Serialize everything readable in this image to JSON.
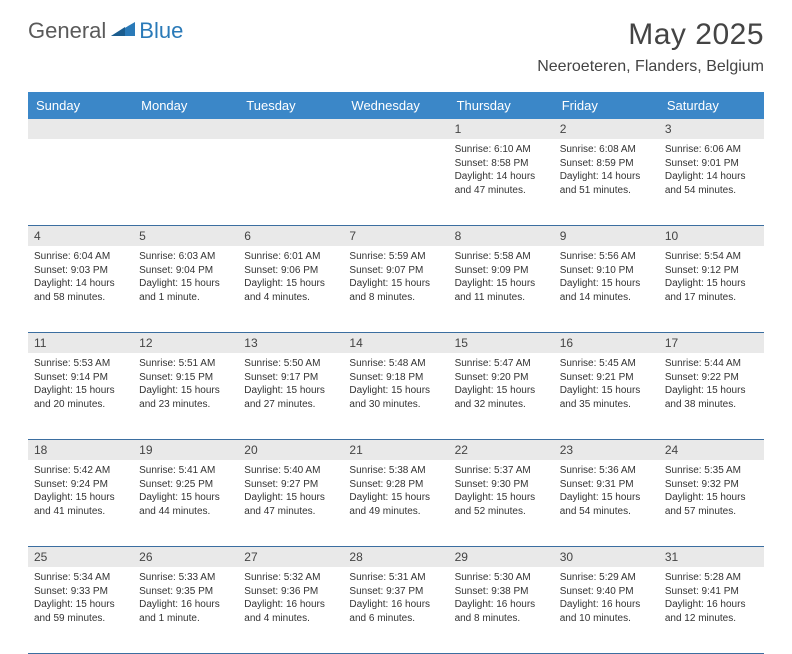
{
  "brand": {
    "part1": "General",
    "part2": "Blue"
  },
  "title": "May 2025",
  "location": "Neeroeteren, Flanders, Belgium",
  "colors": {
    "header_bg": "#3b87c8",
    "header_text": "#ffffff",
    "daynum_bg": "#e9e9e9",
    "week_border": "#3b6ea0",
    "brand_gray": "#5a5a5a",
    "brand_blue": "#2a7ab8",
    "text": "#333333"
  },
  "fonts": {
    "title_size": 30,
    "location_size": 16,
    "header_size": 13,
    "daynum_size": 12,
    "cell_size": 10
  },
  "day_names": [
    "Sunday",
    "Monday",
    "Tuesday",
    "Wednesday",
    "Thursday",
    "Friday",
    "Saturday"
  ],
  "weeks": [
    [
      {
        "day": "",
        "lines": []
      },
      {
        "day": "",
        "lines": []
      },
      {
        "day": "",
        "lines": []
      },
      {
        "day": "",
        "lines": []
      },
      {
        "day": "1",
        "lines": [
          "Sunrise: 6:10 AM",
          "Sunset: 8:58 PM",
          "Daylight: 14 hours",
          "and 47 minutes."
        ]
      },
      {
        "day": "2",
        "lines": [
          "Sunrise: 6:08 AM",
          "Sunset: 8:59 PM",
          "Daylight: 14 hours",
          "and 51 minutes."
        ]
      },
      {
        "day": "3",
        "lines": [
          "Sunrise: 6:06 AM",
          "Sunset: 9:01 PM",
          "Daylight: 14 hours",
          "and 54 minutes."
        ]
      }
    ],
    [
      {
        "day": "4",
        "lines": [
          "Sunrise: 6:04 AM",
          "Sunset: 9:03 PM",
          "Daylight: 14 hours",
          "and 58 minutes."
        ]
      },
      {
        "day": "5",
        "lines": [
          "Sunrise: 6:03 AM",
          "Sunset: 9:04 PM",
          "Daylight: 15 hours",
          "and 1 minute."
        ]
      },
      {
        "day": "6",
        "lines": [
          "Sunrise: 6:01 AM",
          "Sunset: 9:06 PM",
          "Daylight: 15 hours",
          "and 4 minutes."
        ]
      },
      {
        "day": "7",
        "lines": [
          "Sunrise: 5:59 AM",
          "Sunset: 9:07 PM",
          "Daylight: 15 hours",
          "and 8 minutes."
        ]
      },
      {
        "day": "8",
        "lines": [
          "Sunrise: 5:58 AM",
          "Sunset: 9:09 PM",
          "Daylight: 15 hours",
          "and 11 minutes."
        ]
      },
      {
        "day": "9",
        "lines": [
          "Sunrise: 5:56 AM",
          "Sunset: 9:10 PM",
          "Daylight: 15 hours",
          "and 14 minutes."
        ]
      },
      {
        "day": "10",
        "lines": [
          "Sunrise: 5:54 AM",
          "Sunset: 9:12 PM",
          "Daylight: 15 hours",
          "and 17 minutes."
        ]
      }
    ],
    [
      {
        "day": "11",
        "lines": [
          "Sunrise: 5:53 AM",
          "Sunset: 9:14 PM",
          "Daylight: 15 hours",
          "and 20 minutes."
        ]
      },
      {
        "day": "12",
        "lines": [
          "Sunrise: 5:51 AM",
          "Sunset: 9:15 PM",
          "Daylight: 15 hours",
          "and 23 minutes."
        ]
      },
      {
        "day": "13",
        "lines": [
          "Sunrise: 5:50 AM",
          "Sunset: 9:17 PM",
          "Daylight: 15 hours",
          "and 27 minutes."
        ]
      },
      {
        "day": "14",
        "lines": [
          "Sunrise: 5:48 AM",
          "Sunset: 9:18 PM",
          "Daylight: 15 hours",
          "and 30 minutes."
        ]
      },
      {
        "day": "15",
        "lines": [
          "Sunrise: 5:47 AM",
          "Sunset: 9:20 PM",
          "Daylight: 15 hours",
          "and 32 minutes."
        ]
      },
      {
        "day": "16",
        "lines": [
          "Sunrise: 5:45 AM",
          "Sunset: 9:21 PM",
          "Daylight: 15 hours",
          "and 35 minutes."
        ]
      },
      {
        "day": "17",
        "lines": [
          "Sunrise: 5:44 AM",
          "Sunset: 9:22 PM",
          "Daylight: 15 hours",
          "and 38 minutes."
        ]
      }
    ],
    [
      {
        "day": "18",
        "lines": [
          "Sunrise: 5:42 AM",
          "Sunset: 9:24 PM",
          "Daylight: 15 hours",
          "and 41 minutes."
        ]
      },
      {
        "day": "19",
        "lines": [
          "Sunrise: 5:41 AM",
          "Sunset: 9:25 PM",
          "Daylight: 15 hours",
          "and 44 minutes."
        ]
      },
      {
        "day": "20",
        "lines": [
          "Sunrise: 5:40 AM",
          "Sunset: 9:27 PM",
          "Daylight: 15 hours",
          "and 47 minutes."
        ]
      },
      {
        "day": "21",
        "lines": [
          "Sunrise: 5:38 AM",
          "Sunset: 9:28 PM",
          "Daylight: 15 hours",
          "and 49 minutes."
        ]
      },
      {
        "day": "22",
        "lines": [
          "Sunrise: 5:37 AM",
          "Sunset: 9:30 PM",
          "Daylight: 15 hours",
          "and 52 minutes."
        ]
      },
      {
        "day": "23",
        "lines": [
          "Sunrise: 5:36 AM",
          "Sunset: 9:31 PM",
          "Daylight: 15 hours",
          "and 54 minutes."
        ]
      },
      {
        "day": "24",
        "lines": [
          "Sunrise: 5:35 AM",
          "Sunset: 9:32 PM",
          "Daylight: 15 hours",
          "and 57 minutes."
        ]
      }
    ],
    [
      {
        "day": "25",
        "lines": [
          "Sunrise: 5:34 AM",
          "Sunset: 9:33 PM",
          "Daylight: 15 hours",
          "and 59 minutes."
        ]
      },
      {
        "day": "26",
        "lines": [
          "Sunrise: 5:33 AM",
          "Sunset: 9:35 PM",
          "Daylight: 16 hours",
          "and 1 minute."
        ]
      },
      {
        "day": "27",
        "lines": [
          "Sunrise: 5:32 AM",
          "Sunset: 9:36 PM",
          "Daylight: 16 hours",
          "and 4 minutes."
        ]
      },
      {
        "day": "28",
        "lines": [
          "Sunrise: 5:31 AM",
          "Sunset: 9:37 PM",
          "Daylight: 16 hours",
          "and 6 minutes."
        ]
      },
      {
        "day": "29",
        "lines": [
          "Sunrise: 5:30 AM",
          "Sunset: 9:38 PM",
          "Daylight: 16 hours",
          "and 8 minutes."
        ]
      },
      {
        "day": "30",
        "lines": [
          "Sunrise: 5:29 AM",
          "Sunset: 9:40 PM",
          "Daylight: 16 hours",
          "and 10 minutes."
        ]
      },
      {
        "day": "31",
        "lines": [
          "Sunrise: 5:28 AM",
          "Sunset: 9:41 PM",
          "Daylight: 16 hours",
          "and 12 minutes."
        ]
      }
    ]
  ]
}
